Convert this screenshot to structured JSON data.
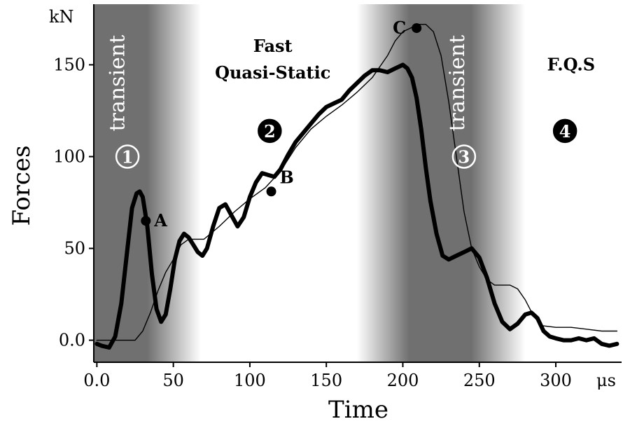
{
  "chart_data": {
    "type": "line",
    "xlabel": "Time",
    "ylabel": "Forces",
    "x_unit": "μs",
    "y_unit": "kN",
    "xlim": [
      -2,
      343
    ],
    "ylim": [
      -12,
      183
    ],
    "x_ticks": [
      0,
      50,
      100,
      150,
      200,
      250,
      300
    ],
    "x_tick_labels": [
      "0.0",
      "50",
      "100",
      "150",
      "200",
      "250",
      "300"
    ],
    "y_ticks": [
      0,
      50,
      100,
      150
    ],
    "y_tick_labels": [
      "0.0",
      "50",
      "100",
      "150"
    ],
    "grid": false,
    "legend": "none",
    "colors": {
      "band_dark": "#707070",
      "curve": "#000000",
      "background": "#ffffff"
    },
    "bands": [
      {
        "name": "transient-1",
        "x_start": -2,
        "x_solid_end": 33,
        "x_fade_end": 68,
        "label": "transient"
      },
      {
        "name": "transient-3",
        "x_start": 170,
        "x_solid_start": 204,
        "x_solid_end": 245,
        "x_fade_end": 280,
        "label": "transient"
      }
    ],
    "phase_labels": [
      {
        "lines": [
          "Fast",
          "Quasi-Static"
        ],
        "x": 115,
        "y": 157
      },
      {
        "lines": [
          "F.Q.S"
        ],
        "x": 310,
        "y": 147
      }
    ],
    "phase_numbers": [
      {
        "text": "1",
        "x": 20,
        "y": 100,
        "style": "outline-white"
      },
      {
        "text": "2",
        "x": 113,
        "y": 114,
        "style": "filled-black"
      },
      {
        "text": "3",
        "x": 240,
        "y": 100,
        "style": "outline-white"
      },
      {
        "text": "4",
        "x": 306,
        "y": 114,
        "style": "filled-black"
      }
    ],
    "points": [
      {
        "label": "A",
        "x": 32,
        "y": 65,
        "label_dx": 12,
        "label_dy": 8
      },
      {
        "label": "B",
        "x": 114,
        "y": 81,
        "label_dx": 12,
        "label_dy": -12
      },
      {
        "label": "C",
        "x": 209,
        "y": 170,
        "label_dx": -34,
        "label_dy": 8
      }
    ],
    "series": [
      {
        "style": "thick",
        "x": [
          0,
          3,
          8,
          12,
          16,
          20,
          23,
          26,
          28,
          30,
          33,
          36,
          39,
          42,
          45,
          48,
          51,
          54,
          57,
          60,
          63,
          66,
          69,
          72,
          76,
          80,
          84,
          88,
          92,
          96,
          100,
          104,
          108,
          112,
          116,
          120,
          125,
          130,
          135,
          140,
          145,
          150,
          155,
          160,
          165,
          170,
          175,
          180,
          185,
          190,
          195,
          200,
          203,
          206,
          209,
          212,
          215,
          218,
          222,
          226,
          230,
          235,
          240,
          245,
          250,
          255,
          260,
          265,
          270,
          275,
          280,
          284,
          288,
          292,
          296,
          300,
          305,
          310,
          315,
          320,
          325,
          330,
          335,
          340
        ],
        "values": [
          -2,
          -3,
          -4,
          2,
          20,
          50,
          72,
          80,
          81,
          78,
          62,
          36,
          17,
          10,
          14,
          28,
          44,
          54,
          58,
          56,
          52,
          48,
          46,
          50,
          62,
          72,
          74,
          68,
          62,
          67,
          78,
          86,
          91,
          90,
          89,
          93,
          101,
          108,
          113,
          118,
          123,
          127,
          129,
          131,
          136,
          140,
          144,
          147,
          147,
          146,
          148,
          150,
          148,
          143,
          132,
          115,
          94,
          76,
          58,
          46,
          44,
          46,
          48,
          50,
          45,
          34,
          20,
          10,
          6,
          9,
          14,
          15,
          12,
          5,
          2,
          1,
          0,
          0,
          1,
          0,
          1,
          -2,
          -3,
          -2
        ]
      },
      {
        "style": "thin",
        "x": [
          0,
          5,
          10,
          15,
          20,
          25,
          30,
          35,
          40,
          45,
          50,
          55,
          60,
          65,
          70,
          80,
          90,
          100,
          110,
          120,
          130,
          140,
          150,
          160,
          170,
          180,
          190,
          195,
          200,
          205,
          210,
          215,
          220,
          225,
          230,
          235,
          240,
          245,
          250,
          255,
          260,
          265,
          270,
          275,
          280,
          285,
          290,
          300,
          310,
          320,
          330,
          340
        ],
        "values": [
          0,
          0,
          0,
          0,
          0,
          0,
          5,
          15,
          27,
          37,
          44,
          52,
          55,
          55,
          55,
          62,
          70,
          77,
          83,
          92,
          105,
          115,
          122,
          128,
          135,
          143,
          155,
          163,
          168,
          170,
          172,
          172,
          168,
          155,
          130,
          100,
          70,
          50,
          40,
          33,
          30,
          30,
          30,
          28,
          22,
          14,
          8,
          7,
          7,
          6,
          5,
          5
        ]
      }
    ]
  }
}
